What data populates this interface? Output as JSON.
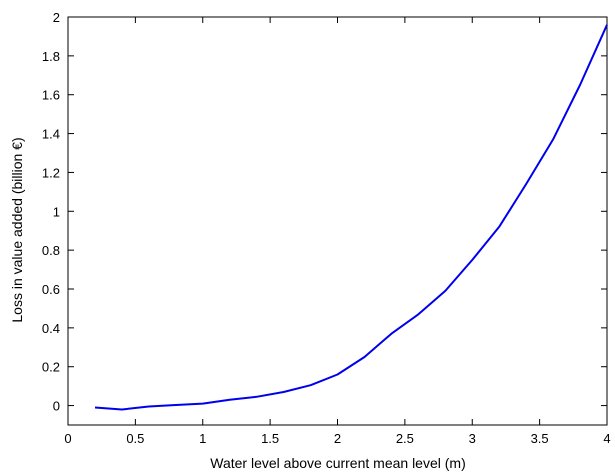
{
  "chart_data": {
    "type": "line",
    "title": "",
    "xlabel": "Water level above current mean level (m)",
    "ylabel": "Loss in value added (billion €)",
    "xlim": [
      0,
      4
    ],
    "ylim": [
      -0.1,
      2
    ],
    "grid": false,
    "legend": "none",
    "x_ticks": [
      0,
      0.5,
      1,
      1.5,
      2,
      2.5,
      3,
      3.5,
      4
    ],
    "x_tick_labels": [
      "0",
      "0.5",
      "1",
      "1.5",
      "2",
      "2.5",
      "3",
      "3.5",
      "4"
    ],
    "y_ticks": [
      0,
      0.2,
      0.4,
      0.6,
      0.8,
      1,
      1.2,
      1.4,
      1.6,
      1.8,
      2
    ],
    "y_tick_labels": [
      "0",
      "0.2",
      "0.4",
      "0.6",
      "0.8",
      "1",
      "1.2",
      "1.4",
      "1.6",
      "1.8",
      "2"
    ],
    "series": [
      {
        "color": "#0000ee",
        "x": [
          0.2,
          0.4,
          0.6,
          0.8,
          1.0,
          1.2,
          1.4,
          1.6,
          1.8,
          2.0,
          2.2,
          2.4,
          2.6,
          2.8,
          3.0,
          3.2,
          3.4,
          3.6,
          3.8,
          4.0
        ],
        "y": [
          -0.01,
          -0.02,
          -0.005,
          0.003,
          0.01,
          0.03,
          0.045,
          0.07,
          0.105,
          0.16,
          0.25,
          0.37,
          0.47,
          0.59,
          0.75,
          0.92,
          1.14,
          1.37,
          1.65,
          1.96
        ]
      }
    ]
  }
}
